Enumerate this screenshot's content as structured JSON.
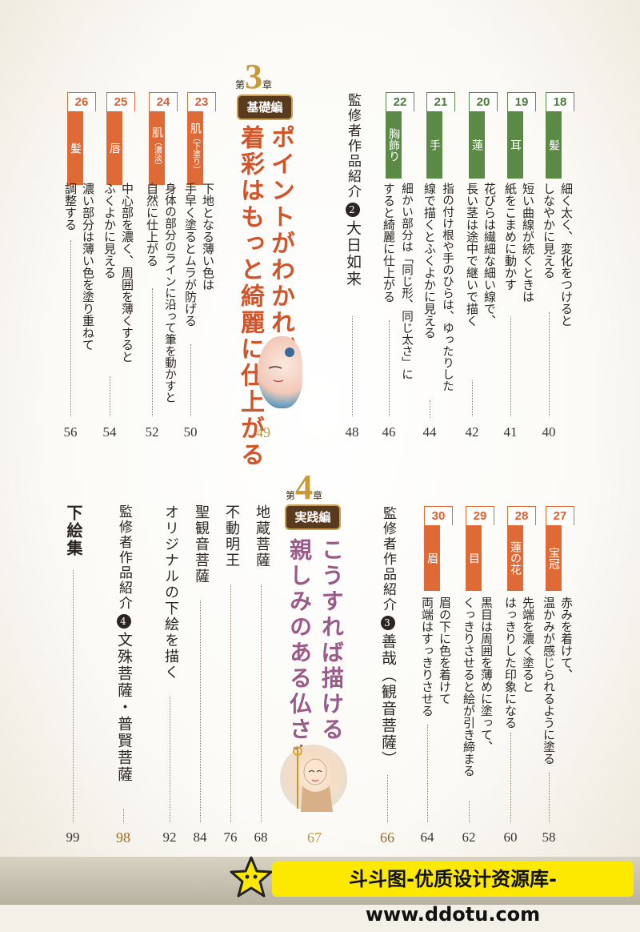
{
  "chapter3": {
    "prefix": "第",
    "number": "3",
    "suffix": "章",
    "badge": "基礎編",
    "title_line1": "ポイントがわかれば、",
    "title_line2": "着彩はもっと綺麗に仕上がる",
    "page": "49",
    "art_icon": "buddha-face-illustration-icon",
    "items_right": [
      {
        "num": "18",
        "label": "髪",
        "text": [
          "細く太く、変化をつけると",
          "しなやかに見える"
        ],
        "page": "40"
      },
      {
        "num": "19",
        "label": "耳",
        "text": [
          "短い曲線が続くときは",
          "紙をこまめに動かす"
        ],
        "page": "41"
      },
      {
        "num": "20",
        "label": "蓮",
        "text": [
          "花びらは繊細な細い線で、",
          "長い茎は途中で継いで描く"
        ],
        "page": "42"
      },
      {
        "num": "21",
        "label": "手",
        "text": [
          "指の付け根や手のひらは、ゆったりした",
          "線で描くとふくよかに見える"
        ],
        "page": "44"
      },
      {
        "num": "22",
        "label": "胸飾り",
        "text": [
          "細かい部分は「同じ形、同じ太さ」に",
          "すると綺麗に仕上がる"
        ],
        "page": "46"
      }
    ],
    "feature": {
      "text": "監修者作品紹介",
      "circ": "2",
      "name": "大日如来",
      "page": "48"
    },
    "items_left": [
      {
        "num": "23",
        "label": "肌",
        "sub": "（下塗り）",
        "text": [
          "下地となる薄い色は",
          "手早く塗るとムラが防げる"
        ],
        "page": "50"
      },
      {
        "num": "24",
        "label": "肌",
        "sub": "（濃淡）",
        "text": [
          "身体の部分のラインに沿って筆を動かすと",
          "自然に仕上がる"
        ],
        "page": "52"
      },
      {
        "num": "25",
        "label": "唇",
        "sub": "",
        "text": [
          "中心部を濃く、周囲を薄くすると",
          "ふくよかに見える"
        ],
        "page": "54"
      },
      {
        "num": "26",
        "label": "髪",
        "sub": "",
        "text": [
          "濃い部分は薄い色を塗り重ねて",
          "調整する"
        ],
        "page": "56"
      }
    ]
  },
  "chapter4": {
    "prefix": "第",
    "number": "4",
    "suffix": "章",
    "badge": "実践編",
    "title_line1": "こうすれば描ける",
    "title_line2": "親しみのある仏さま",
    "page": "67",
    "art_icon": "jizo-monk-illustration-icon",
    "items_right": [
      {
        "num": "27",
        "label": "宝冠",
        "text": [
          "赤みを着けて、",
          "温かみが感じられるように塗る"
        ],
        "page": "58"
      },
      {
        "num": "28",
        "label": "蓮の花",
        "text": [
          "先端を濃く塗ると",
          "はっきりした印象になる"
        ],
        "page": "60"
      },
      {
        "num": "29",
        "label": "目",
        "text": [
          "黒目は周囲を薄めに塗って、",
          "くっきりさせると絵が引き締まる"
        ],
        "page": "62"
      },
      {
        "num": "30",
        "label": "眉",
        "text": [
          "眉の下に色を着けて",
          "両端はすっきりさせる"
        ],
        "page": "64"
      }
    ],
    "feature": {
      "text": "監修者作品紹介",
      "circ": "3",
      "name": "善哉（観音菩薩）",
      "page": "66"
    },
    "left_entries": [
      {
        "text": "地蔵菩薩",
        "page": "68"
      },
      {
        "text": "不動明王",
        "page": "76"
      },
      {
        "text": "聖観音菩薩",
        "page": "84"
      },
      {
        "text": "オリジナルの下絵を描く",
        "page": "92"
      }
    ],
    "feature2": {
      "text": "監修者作品紹介",
      "circ": "4",
      "name": "文殊菩薩・普賢菩薩",
      "page": "98"
    },
    "last": {
      "text": "下絵集",
      "page": "99"
    }
  },
  "watermark": {
    "text": "斗斗图-优质设计资源库-www.ddotu.com",
    "icon": "star-icon"
  },
  "colors": {
    "green": "#5a8a45",
    "orange": "#e06a35",
    "gold": "#c89a3a",
    "chapter3_title": "#d0552a",
    "chapter4_title": "#9a5a8a",
    "badge_bg": "#5a3a1e"
  }
}
